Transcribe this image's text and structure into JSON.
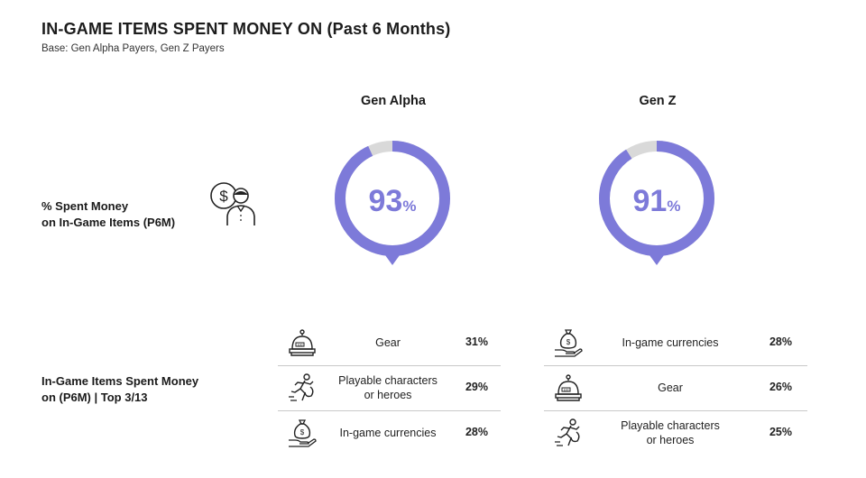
{
  "header": {
    "title": "IN-GAME ITEMS SPENT MONEY ON (Past 6 Months)",
    "subtitle": "Base: Gen Alpha Payers, Gen Z Payers"
  },
  "row_labels": {
    "spent_line1": "% Spent Money",
    "spent_line2": "on In-Game Items (P6M)",
    "items_line1": "In-Game Items Spent Money",
    "items_line2": "on (P6M) | Top 3/13"
  },
  "colors": {
    "accent": "#7d7ad9",
    "track": "#d9d9d9"
  },
  "icons": {
    "row1": "money-person-icon"
  },
  "chart_data": [
    {
      "type": "pie",
      "group": "Gen Alpha",
      "value": 93,
      "display": "93",
      "unit": "%"
    },
    {
      "type": "pie",
      "group": "Gen Z",
      "value": 91,
      "display": "91",
      "unit": "%"
    },
    {
      "type": "table",
      "group": "Gen Alpha",
      "rows": [
        {
          "icon": "bell-counter-icon",
          "label": [
            "Gear"
          ],
          "value": "31%"
        },
        {
          "icon": "running-hero-icon",
          "label": [
            "Playable characters",
            "or heroes"
          ],
          "value": "29%"
        },
        {
          "icon": "money-bag-hand-icon",
          "label": [
            "In-game currencies"
          ],
          "value": "28%"
        }
      ]
    },
    {
      "type": "table",
      "group": "Gen Z",
      "rows": [
        {
          "icon": "money-bag-hand-icon",
          "label": [
            "In-game currencies"
          ],
          "value": "28%"
        },
        {
          "icon": "bell-counter-icon",
          "label": [
            "Gear"
          ],
          "value": "26%"
        },
        {
          "icon": "running-hero-icon",
          "label": [
            "Playable characters",
            "or heroes"
          ],
          "value": "25%"
        }
      ]
    }
  ]
}
